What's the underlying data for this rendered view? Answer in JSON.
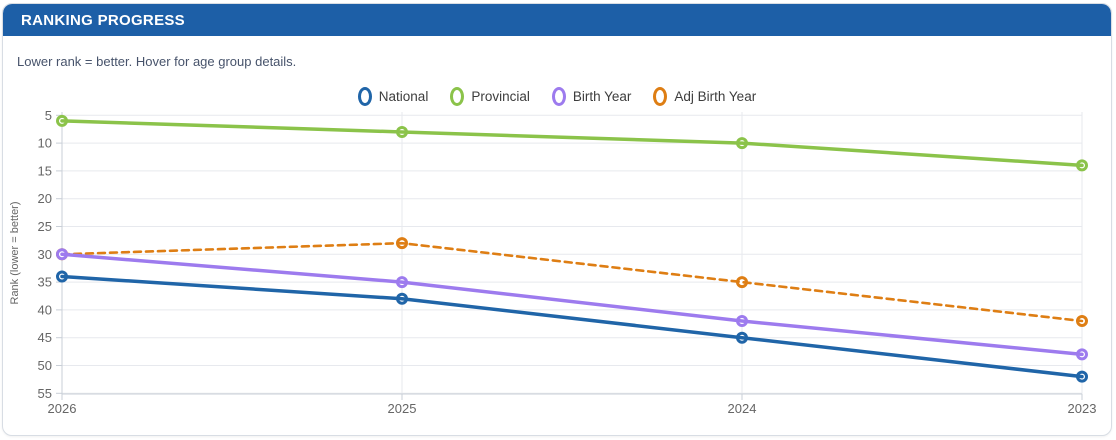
{
  "card": {
    "title": "RANKING PROGRESS",
    "subtitle": "Lower rank = better. Hover for age group details.",
    "header_color": "#1d5fa7"
  },
  "chart_data": {
    "type": "line",
    "title": "RANKING PROGRESS",
    "x": [
      "2026",
      "2025",
      "2024",
      "2023"
    ],
    "series": [
      {
        "name": "National",
        "color": "#2065a8",
        "dashed": false,
        "values": [
          34,
          38,
          45,
          52
        ]
      },
      {
        "name": "Provincial",
        "color": "#8bc34a",
        "dashed": false,
        "values": [
          6,
          8,
          10,
          14
        ]
      },
      {
        "name": "Birth Year",
        "color": "#9d7bee",
        "dashed": false,
        "values": [
          30,
          35,
          42,
          48
        ]
      },
      {
        "name": "Adj Birth Year",
        "color": "#de7e14",
        "dashed": true,
        "values": [
          30,
          28,
          35,
          42
        ]
      }
    ],
    "xlabel": "",
    "ylabel": "Rank (lower = better)",
    "yticks": [
      5,
      10,
      15,
      20,
      25,
      30,
      35,
      40,
      45,
      50,
      55
    ],
    "ylim": [
      5,
      55
    ],
    "y_inverted": true,
    "grid": true,
    "legend_position": "top",
    "colors": {
      "grid": "#e7e9ee",
      "axis": "#c9cfd7",
      "tick_label": "#666666",
      "axis_title": "#666666"
    }
  }
}
